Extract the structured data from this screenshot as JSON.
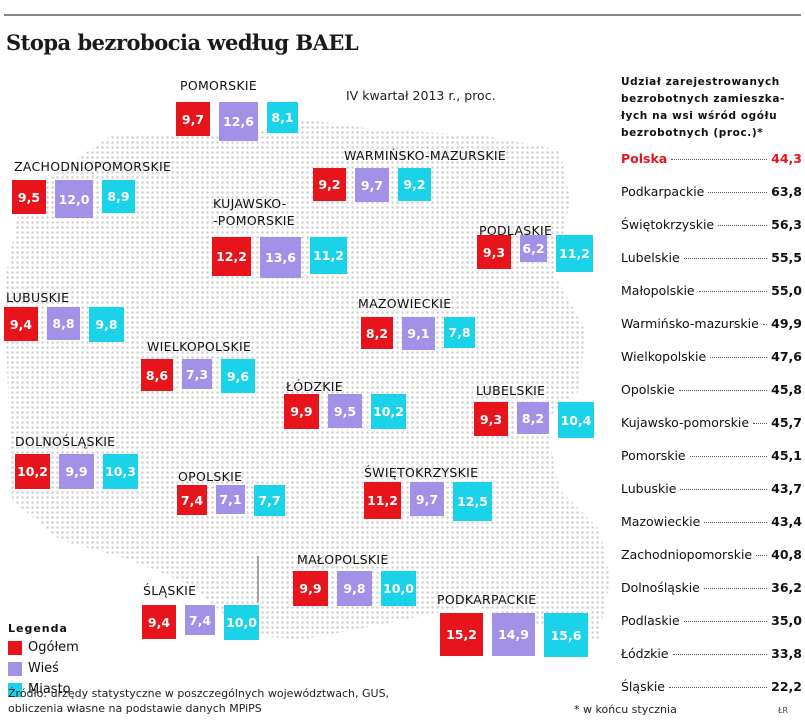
{
  "title": "Stopa bezrobocia według BAEL",
  "subtitle": "IV kwartał 2013 r., proc.",
  "colors": {
    "total": "#e8141b",
    "rural": "#a291e6",
    "urban": "#1ad3e8",
    "highlight": "#e8141b"
  },
  "chart_data": {
    "type": "bar",
    "title": "Stopa bezrobocia według BAEL",
    "subtitle": "IV kwartał 2013 r., proc.",
    "series_names": [
      "Ogółem",
      "Wieś",
      "Miasto"
    ],
    "regions": [
      {
        "name": "POMORSKIE",
        "total": "9,7",
        "rural": "12,6",
        "urban": "8,1"
      },
      {
        "name": "ZACHODNIOPOMORSKIE",
        "total": "9,5",
        "rural": "12,0",
        "urban": "8,9"
      },
      {
        "name": "WARMIŃSKO-MAZURSKIE",
        "total": "9,2",
        "rural": "9,7",
        "urban": "9,2"
      },
      {
        "name": "KUJAWSKO-\n-POMORSKIE",
        "total": "12,2",
        "rural": "13,6",
        "urban": "11,2"
      },
      {
        "name": "PODLASKIE",
        "total": "9,3",
        "rural": "6,2",
        "urban": "11,2"
      },
      {
        "name": "LUBUSKIE",
        "total": "9,4",
        "rural": "8,8",
        "urban": "9,8"
      },
      {
        "name": "MAZOWIECKIE",
        "total": "8,2",
        "rural": "9,1",
        "urban": "7,8"
      },
      {
        "name": "WIELKOPOLSKIE",
        "total": "8,6",
        "rural": "7,3",
        "urban": "9,6"
      },
      {
        "name": "ŁÓDZKIE",
        "total": "9,9",
        "rural": "9,5",
        "urban": "10,2"
      },
      {
        "name": "LUBELSKIE",
        "total": "9,3",
        "rural": "8,2",
        "urban": "10,4"
      },
      {
        "name": "DOLNOŚLĄSKIE",
        "total": "10,2",
        "rural": "9,9",
        "urban": "10,3"
      },
      {
        "name": "OPOLSKIE",
        "total": "7,4",
        "rural": "7,1",
        "urban": "7,7"
      },
      {
        "name": "ŚWIĘTOKRZYSKIE",
        "total": "11,2",
        "rural": "9,7",
        "urban": "12,5"
      },
      {
        "name": "MAŁOPOLSKIE",
        "total": "9,9",
        "rural": "9,8",
        "urban": "10,0"
      },
      {
        "name": "ŚLĄSKIE",
        "total": "9,4",
        "rural": "7,4",
        "urban": "10,0"
      },
      {
        "name": "PODKARPACKIE",
        "total": "15,2",
        "rural": "14,9",
        "urban": "15,6"
      }
    ]
  },
  "legend": {
    "title": "Legenda",
    "items": [
      {
        "key": "total",
        "label": "Ogółem"
      },
      {
        "key": "rural",
        "label": "Wieś"
      },
      {
        "key": "urban",
        "label": "Miasto"
      }
    ]
  },
  "sidebar": {
    "title": "Udział zarejestrowanych bezrobotnych zamieszka-łych na wsi wśród ogółu bezrobotnych (proc.)*",
    "rows": [
      {
        "name": "Polska",
        "value": "44,3"
      },
      {
        "name": "Podkarpackie",
        "value": "63,8"
      },
      {
        "name": "Świętokrzyskie",
        "value": "56,3"
      },
      {
        "name": "Lubelskie",
        "value": "55,5"
      },
      {
        "name": "Małopolskie",
        "value": "55,0"
      },
      {
        "name": "Warmińsko-mazurskie",
        "value": "49,9"
      },
      {
        "name": "Wielkopolskie",
        "value": "47,6"
      },
      {
        "name": "Opolskie",
        "value": "45,8"
      },
      {
        "name": "Kujawsko-pomorskie",
        "value": "45,7"
      },
      {
        "name": "Pomorskie",
        "value": "45,1"
      },
      {
        "name": "Lubuskie",
        "value": "43,7"
      },
      {
        "name": "Mazowieckie",
        "value": "43,4"
      },
      {
        "name": "Zachodniopomorskie",
        "value": "40,8"
      },
      {
        "name": "Dolnośląskie",
        "value": "36,2"
      },
      {
        "name": "Podlaskie",
        "value": "35,0"
      },
      {
        "name": "Łódzkie",
        "value": "33,8"
      },
      {
        "name": "Śląskie",
        "value": "22,2"
      }
    ]
  },
  "source": "Źródło: urzędy statystyczne w poszczególnych województwach, GUS, obliczenia własne na podstawie danych MPiPS",
  "footnote": "* w końcu stycznia",
  "credit": "ŁR"
}
